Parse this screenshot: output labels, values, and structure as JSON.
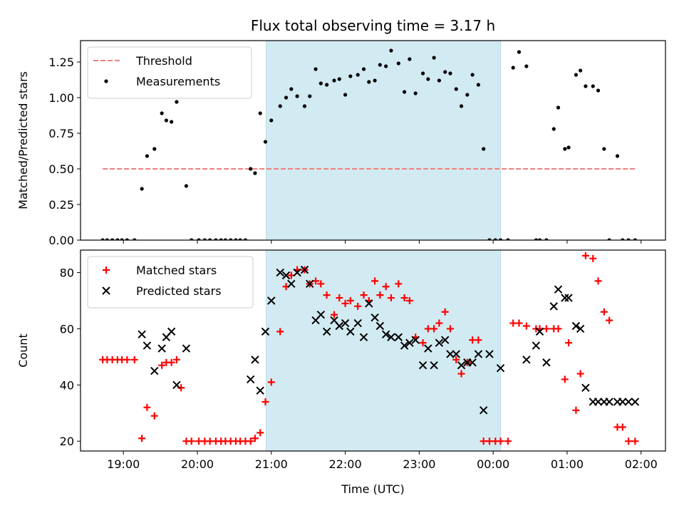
{
  "chart_data": [
    {
      "type": "scatter",
      "title": "Flux total observing time = 3.17 h",
      "xlabel": "",
      "ylabel": "Matched/Predicted stars",
      "ylim": [
        0,
        1.4
      ],
      "yticks": [
        0.0,
        0.25,
        0.5,
        0.75,
        1.0,
        1.25
      ],
      "ytick_labels": [
        "0.00",
        "0.25",
        "0.50",
        "0.75",
        "1.00",
        "1.25"
      ],
      "xlim": [
        18.42,
        26.33
      ],
      "shaded_interval": [
        20.93,
        24.1
      ],
      "shade_color": "#add8e6",
      "legend_position": "top-left",
      "threshold": {
        "name": "Threshold",
        "value": 0.5,
        "x_range": [
          18.72,
          25.92
        ],
        "color": "#f08080"
      },
      "series": [
        {
          "name": "Measurements",
          "color": "#000000",
          "marker": "dot",
          "x": [
            18.72,
            18.78,
            18.85,
            18.92,
            18.98,
            19.05,
            19.15,
            19.25,
            19.32,
            19.42,
            19.52,
            19.58,
            19.65,
            19.72,
            19.85,
            19.92,
            20.02,
            20.1,
            20.17,
            20.25,
            20.32,
            20.38,
            20.45,
            20.52,
            20.58,
            20.65,
            20.72,
            20.78,
            20.85,
            20.92,
            21.0,
            21.12,
            21.2,
            21.27,
            21.35,
            21.45,
            21.52,
            21.6,
            21.67,
            21.75,
            21.85,
            21.92,
            22.0,
            22.07,
            22.17,
            22.25,
            22.32,
            22.4,
            22.47,
            22.55,
            22.62,
            22.72,
            22.8,
            22.87,
            22.95,
            23.05,
            23.12,
            23.2,
            23.27,
            23.35,
            23.42,
            23.5,
            23.57,
            23.65,
            23.72,
            23.8,
            23.87,
            23.95,
            24.03,
            24.1,
            24.2,
            24.27,
            24.35,
            24.45,
            24.58,
            24.63,
            24.72,
            24.82,
            24.88,
            24.97,
            25.02,
            25.12,
            25.18,
            25.25,
            25.35,
            25.42,
            25.5,
            25.57,
            25.68,
            25.75,
            25.83,
            25.92
          ],
          "y": [
            0,
            0,
            0,
            0,
            0,
            0,
            0,
            0.36,
            0.59,
            0.64,
            0.89,
            0.84,
            0.83,
            0.97,
            0.38,
            0,
            0,
            0,
            0,
            0,
            0,
            0,
            0,
            0,
            0,
            0,
            0.5,
            0.47,
            0.89,
            0.69,
            0.84,
            0.94,
            1.0,
            1.06,
            1.01,
            0.94,
            1.01,
            1.2,
            1.1,
            1.09,
            1.12,
            1.13,
            1.02,
            1.15,
            1.16,
            1.2,
            1.11,
            1.12,
            1.23,
            1.22,
            1.33,
            1.24,
            1.04,
            1.27,
            1.03,
            1.17,
            1.13,
            1.28,
            1.12,
            1.18,
            1.17,
            1.06,
            0.94,
            1.02,
            1.16,
            1.09,
            0.64,
            0,
            0,
            0,
            0,
            1.21,
            1.32,
            1.22,
            0,
            0,
            0,
            0.78,
            0.93,
            0.64,
            0.65,
            1.16,
            1.19,
            1.08,
            1.08,
            1.05,
            0.64,
            0,
            0.59,
            0,
            0,
            0
          ]
        }
      ]
    },
    {
      "type": "scatter",
      "title": "",
      "xlabel": "Time (UTC)",
      "ylabel": "Count",
      "ylim": [
        16.5,
        88
      ],
      "yticks": [
        20,
        40,
        60,
        80
      ],
      "ytick_labels": [
        "20",
        "40",
        "60",
        "80"
      ],
      "xlim": [
        18.42,
        26.33
      ],
      "xticks": [
        19,
        20,
        21,
        22,
        23,
        24,
        25,
        26
      ],
      "xtick_labels": [
        "19:00",
        "20:00",
        "21:00",
        "22:00",
        "23:00",
        "00:00",
        "01:00",
        "02:00"
      ],
      "shaded_interval": [
        20.93,
        24.1
      ],
      "shade_color": "#add8e6",
      "legend_position": "top-left",
      "series": [
        {
          "name": "Matched stars",
          "color": "#ff0000",
          "marker": "plus",
          "x": [
            18.72,
            18.78,
            18.85,
            18.92,
            18.98,
            19.05,
            19.15,
            19.25,
            19.32,
            19.42,
            19.52,
            19.58,
            19.65,
            19.72,
            19.78,
            19.85,
            19.92,
            20.02,
            20.1,
            20.17,
            20.25,
            20.32,
            20.38,
            20.45,
            20.52,
            20.58,
            20.65,
            20.72,
            20.78,
            20.85,
            20.92,
            21.0,
            21.12,
            21.2,
            21.27,
            21.35,
            21.45,
            21.52,
            21.6,
            21.67,
            21.75,
            21.85,
            21.92,
            22.0,
            22.07,
            22.17,
            22.25,
            22.32,
            22.4,
            22.47,
            22.55,
            22.62,
            22.72,
            22.8,
            22.87,
            22.95,
            23.05,
            23.12,
            23.2,
            23.27,
            23.35,
            23.42,
            23.5,
            23.57,
            23.65,
            23.72,
            23.8,
            23.87,
            23.95,
            24.03,
            24.1,
            24.2,
            24.27,
            24.35,
            24.45,
            24.58,
            24.63,
            24.72,
            24.82,
            24.88,
            24.97,
            25.02,
            25.12,
            25.18,
            25.25,
            25.35,
            25.42,
            25.5,
            25.57,
            25.68,
            25.75,
            25.83,
            25.92
          ],
          "y": [
            49,
            49,
            49,
            49,
            49,
            49,
            49,
            21,
            32,
            29,
            47,
            48,
            48,
            49,
            39,
            20,
            20,
            20,
            20,
            20,
            20,
            20,
            20,
            20,
            20,
            20,
            20,
            20,
            21,
            23,
            34,
            41,
            59,
            75,
            79,
            81,
            81,
            76,
            77,
            76,
            72,
            65,
            71,
            69,
            70,
            68,
            72,
            70,
            77,
            72,
            75,
            71,
            76,
            71,
            70,
            57,
            55,
            60,
            60,
            62,
            66,
            60,
            49,
            44,
            48,
            56,
            56,
            20,
            20,
            20,
            20,
            20,
            62,
            62,
            61,
            60,
            60,
            60,
            60,
            60,
            42,
            55,
            31,
            44,
            86,
            85,
            77,
            66,
            63,
            25,
            25,
            20,
            20
          ]
        },
        {
          "name": "Predicted stars",
          "color": "#000000",
          "marker": "x",
          "x": [
            19.25,
            19.32,
            19.42,
            19.52,
            19.58,
            19.65,
            19.72,
            19.85,
            20.72,
            20.78,
            20.85,
            20.92,
            21.0,
            21.12,
            21.2,
            21.27,
            21.35,
            21.45,
            21.52,
            21.6,
            21.67,
            21.75,
            21.85,
            21.92,
            22.0,
            22.07,
            22.17,
            22.25,
            22.32,
            22.4,
            22.47,
            22.55,
            22.62,
            22.72,
            22.8,
            22.87,
            22.95,
            23.05,
            23.12,
            23.2,
            23.27,
            23.35,
            23.42,
            23.5,
            23.57,
            23.65,
            23.72,
            23.8,
            23.87,
            23.95,
            24.1,
            24.45,
            24.58,
            24.63,
            24.72,
            24.82,
            24.88,
            24.97,
            25.02,
            25.12,
            25.18,
            25.25,
            25.35,
            25.42,
            25.5,
            25.57,
            25.68,
            25.75,
            25.83,
            25.92
          ],
          "y": [
            58,
            54,
            45,
            53,
            57,
            59,
            40,
            53,
            42,
            49,
            38,
            59,
            70,
            80,
            79,
            76,
            80,
            81,
            76,
            63,
            65,
            59,
            63,
            61,
            62,
            59,
            62,
            57,
            69,
            64,
            61,
            58,
            57,
            57,
            54,
            55,
            56,
            47,
            53,
            47,
            55,
            56,
            51,
            51,
            47,
            48,
            48,
            51,
            31,
            51,
            46,
            49,
            54,
            59,
            48,
            68,
            74,
            71,
            71,
            61,
            60,
            39,
            34,
            34,
            34,
            34,
            34,
            34,
            34,
            34
          ]
        }
      ]
    }
  ]
}
